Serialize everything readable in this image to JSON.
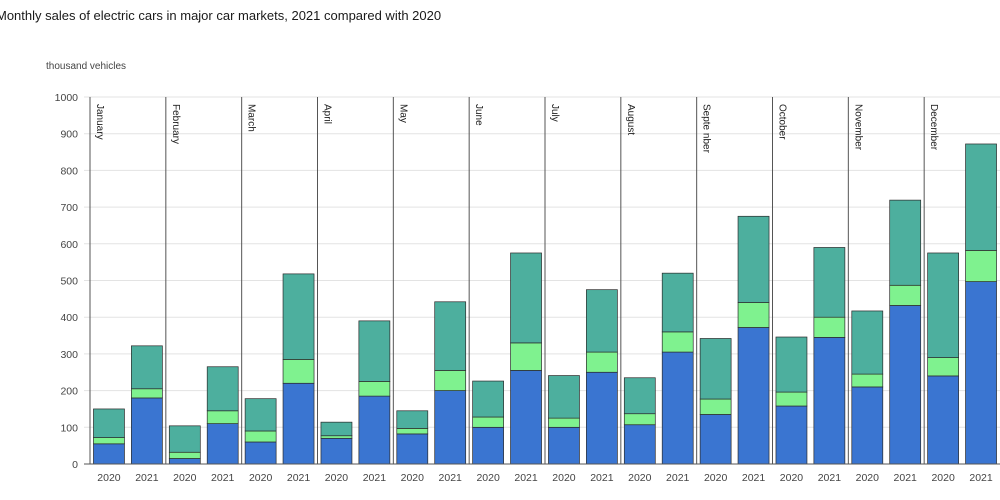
{
  "chart_data": {
    "type": "bar",
    "stacked": true,
    "title": "Monthly sales of electric cars in major car markets, 2021 compared with 2020",
    "ylabel": "thousand vehicles",
    "ylim": [
      0,
      1000
    ],
    "yticks": [
      0,
      100,
      200,
      300,
      400,
      500,
      600,
      700,
      800,
      900,
      1000
    ],
    "grid": true,
    "months": [
      "January",
      "February",
      "March",
      "April",
      "May",
      "June",
      "July",
      "August",
      "Septe nber",
      "October",
      "November",
      "December"
    ],
    "years": [
      "2020",
      "2021"
    ],
    "colors": {
      "bottom": "#3a75d1",
      "middle": "#7ff28f",
      "top": "#4daf9e"
    },
    "bars": [
      [
        [
          55,
          17,
          78
        ],
        [
          180,
          25,
          117
        ]
      ],
      [
        [
          15,
          17,
          72
        ],
        [
          110,
          35,
          120
        ]
      ],
      [
        [
          60,
          30,
          88
        ],
        [
          220,
          65,
          233
        ]
      ],
      [
        [
          70,
          7,
          37
        ],
        [
          185,
          40,
          165
        ]
      ],
      [
        [
          82,
          15,
          48
        ],
        [
          200,
          55,
          187
        ]
      ],
      [
        [
          100,
          28,
          98
        ],
        [
          255,
          75,
          245
        ]
      ],
      [
        [
          100,
          25,
          116
        ],
        [
          250,
          55,
          170
        ]
      ],
      [
        [
          107,
          30,
          98
        ],
        [
          305,
          55,
          160
        ]
      ],
      [
        [
          135,
          42,
          165
        ],
        [
          372,
          68,
          235
        ]
      ],
      [
        [
          158,
          38,
          150
        ],
        [
          345,
          55,
          190
        ]
      ],
      [
        [
          210,
          35,
          172
        ],
        [
          432,
          55,
          232
        ]
      ],
      [
        [
          240,
          50,
          285
        ],
        [
          497,
          85,
          290
        ]
      ]
    ]
  }
}
